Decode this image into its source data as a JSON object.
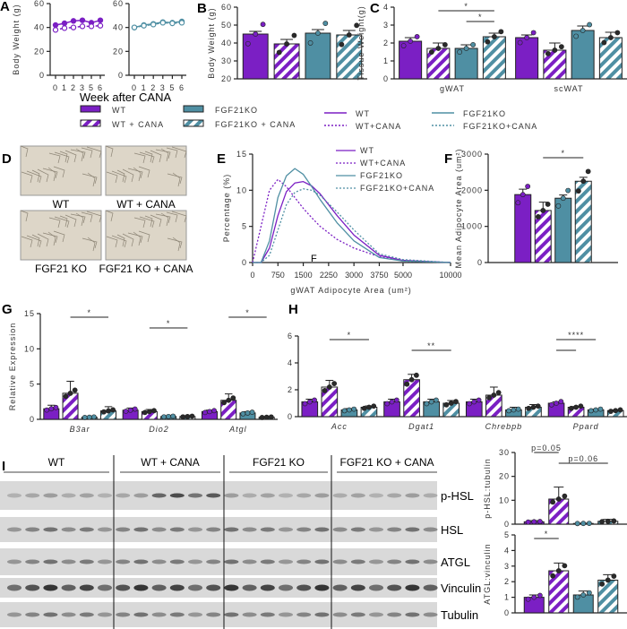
{
  "panel_labels": [
    "A",
    "B",
    "C",
    "D",
    "E",
    "F",
    "G",
    "H",
    "I"
  ],
  "colors": {
    "wt": "#7b1fc4",
    "ko": "#4f8fa3",
    "hatch_bg": "#ffffff"
  },
  "legend_bars": [
    {
      "label": "WT",
      "style": "wt-solid"
    },
    {
      "label": "WT + CANA",
      "style": "wt-hatch"
    },
    {
      "label": "FGF21KO",
      "style": "ko-solid"
    },
    {
      "label": "FGF21KO + CANA",
      "style": "ko-hatch"
    }
  ],
  "legend_lines": [
    {
      "label": "WT",
      "style": "wt-solid"
    },
    {
      "label": "WT+CANA",
      "style": "wt-dash"
    },
    {
      "label": "FGF21KO",
      "style": "ko-solid"
    },
    {
      "label": "FGF21KO+CANA",
      "style": "ko-dash"
    }
  ],
  "images_d": {
    "labels": [
      "WT",
      "WT + CANA",
      "FGF21 KO",
      "FGF21 KO + CANA"
    ]
  },
  "blot_i": {
    "groups": [
      "WT",
      "WT + CANA",
      "FGF21 KO",
      "FGF21 KO + CANA"
    ],
    "rows": [
      "p-HSL",
      "HSL",
      "ATGL",
      "Vinculin",
      "Tubulin"
    ]
  },
  "chart_data": [
    {
      "id": "A",
      "type": "line",
      "ylabel": "Body Weight (g)",
      "xlabel": "Week after CANA",
      "x": [
        0,
        1,
        2,
        3,
        5,
        6
      ],
      "ylim": [
        0,
        60
      ],
      "yticks": [
        0,
        20,
        40,
        60
      ],
      "panels": [
        {
          "series": [
            {
              "group": "WT",
              "values": [
                42,
                43.5,
                45.5,
                46,
                44,
                46
              ]
            },
            {
              "group": "WT + CANA",
              "values": [
                38,
                39.5,
                40,
                41,
                41,
                41.5
              ]
            }
          ]
        },
        {
          "series": [
            {
              "group": "FGF21KO",
              "values": [
                40,
                42,
                43,
                44.5,
                44,
                45
              ]
            },
            {
              "group": "FGF21KO + CANA",
              "values": [
                40,
                41.5,
                42.5,
                44,
                43.5,
                44
              ]
            }
          ]
        }
      ]
    },
    {
      "id": "B",
      "type": "bar",
      "ylabel": "Body Weight (g)",
      "ylim": [
        20,
        60
      ],
      "yticks": [
        20,
        30,
        40,
        50,
        60
      ],
      "groups": [
        {
          "label": "",
          "values": [
            45,
            39.5,
            45.5,
            44.5
          ],
          "errors": [
            1.5,
            2.5,
            2,
            2.5
          ]
        }
      ]
    },
    {
      "id": "C",
      "type": "bar",
      "ylabel": "Tissue Weight(g)",
      "ylim": [
        0,
        4
      ],
      "yticks": [
        0,
        1,
        2,
        3,
        4
      ],
      "groups": [
        {
          "label": "gWAT",
          "values": [
            2.1,
            1.7,
            1.7,
            2.35
          ],
          "errors": [
            0.2,
            0.3,
            0.2,
            0.2
          ]
        },
        {
          "label": "scWAT",
          "values": [
            2.3,
            1.6,
            2.7,
            2.3
          ],
          "errors": [
            0.15,
            0.4,
            0.25,
            0.3
          ]
        }
      ],
      "sig": [
        {
          "group": 0,
          "from": 1,
          "to": 3,
          "label": "*"
        },
        {
          "group": 0,
          "from": 2,
          "to": 3,
          "label": "*"
        }
      ]
    },
    {
      "id": "E",
      "type": "line",
      "ylabel": "Percentage (%)",
      "xlabel": "gWAT Adipocyte Area (um²)",
      "ylim": [
        0,
        15
      ],
      "yticks": [
        0,
        5,
        10,
        15
      ],
      "xticks": [
        0,
        750,
        1500,
        2250,
        3000,
        3750,
        5000,
        10000
      ],
      "annotation": "F",
      "x": [
        0,
        250,
        500,
        750,
        1000,
        1250,
        1500,
        1750,
        2000,
        2500,
        3000,
        3750,
        5000,
        10000
      ],
      "series": [
        {
          "name": "WT",
          "values": [
            0,
            0,
            2,
            6.5,
            9.8,
            11,
            11.2,
            10.6,
            9.5,
            6.5,
            3.8,
            1.0,
            0.3,
            0
          ]
        },
        {
          "name": "WT+CANA",
          "values": [
            0,
            5,
            10,
            11.5,
            10.5,
            9,
            7.5,
            6.2,
            5,
            3.2,
            2,
            0.8,
            0.2,
            0
          ]
        },
        {
          "name": "FGF21KO",
          "values": [
            0,
            0,
            3,
            9,
            12,
            13,
            12.2,
            10.5,
            8.7,
            5.5,
            3,
            0.7,
            0.2,
            0
          ]
        },
        {
          "name": "FGF21KO+CANA",
          "values": [
            0,
            0,
            1,
            4.5,
            8,
            9.7,
            10.2,
            10,
            9.3,
            7,
            4.5,
            1.2,
            0.4,
            0
          ]
        }
      ]
    },
    {
      "id": "F",
      "type": "bar",
      "ylabel": "Mean Adipocyte Area (um²)",
      "ylim": [
        0,
        3000
      ],
      "yticks": [
        0,
        1000,
        2000,
        3000
      ],
      "groups": [
        {
          "label": "",
          "values": [
            1880,
            1440,
            1780,
            2250
          ],
          "errors": [
            150,
            230,
            90,
            110
          ]
        }
      ],
      "sig": [
        {
          "group": 0,
          "from": 1,
          "to": 3,
          "label": "*"
        }
      ]
    },
    {
      "id": "G",
      "type": "bar",
      "ylabel": "Relative Expression",
      "ylim": [
        0,
        15
      ],
      "yticks": [
        0,
        5,
        10,
        15
      ],
      "groups": [
        {
          "label": "B3ar",
          "values": [
            1.5,
            3.7,
            0.3,
            1.2
          ],
          "errors": [
            0.5,
            1.7,
            0.1,
            0.6
          ]
        },
        {
          "label": "Dio2",
          "values": [
            1.3,
            1.1,
            0.4,
            0.4
          ],
          "errors": [
            0.3,
            0.3,
            0.1,
            0.1
          ]
        },
        {
          "label": "Atgl",
          "values": [
            1.1,
            2.7,
            0.9,
            0.3
          ],
          "errors": [
            0.2,
            0.9,
            0.2,
            0.1
          ]
        }
      ],
      "sig": [
        {
          "group": 0,
          "from": 1,
          "to": 3,
          "label": "*"
        },
        {
          "group": 1,
          "from": 1,
          "to": 3,
          "label": "*"
        },
        {
          "group": 2,
          "from": 1,
          "to": 3,
          "label": "*"
        }
      ]
    },
    {
      "id": "H",
      "type": "bar",
      "ylabel": "",
      "ylim": [
        0,
        6
      ],
      "yticks": [
        0,
        2,
        4,
        6
      ],
      "groups": [
        {
          "label": "Acc",
          "values": [
            1.1,
            2.2,
            0.5,
            0.7
          ],
          "errors": [
            0.2,
            0.5,
            0.1,
            0.1
          ]
        },
        {
          "label": "Dgat1",
          "values": [
            1.1,
            2.75,
            1.1,
            1.0
          ],
          "errors": [
            0.2,
            0.4,
            0.2,
            0.2
          ]
        },
        {
          "label": "Chrebpb",
          "values": [
            1.1,
            1.6,
            0.5,
            0.7
          ],
          "errors": [
            0.2,
            0.6,
            0.2,
            0.2
          ]
        },
        {
          "label": "Ppard",
          "values": [
            1.0,
            0.7,
            0.5,
            0.45
          ],
          "errors": [
            0.1,
            0.05,
            0.05,
            0.05
          ]
        }
      ],
      "sig": [
        {
          "group": 0,
          "from": 1,
          "to": 3,
          "label": "*"
        },
        {
          "group": 1,
          "from": 1,
          "to": 3,
          "label": "**"
        },
        {
          "group": 3,
          "from": 0,
          "to": 2,
          "label": "****"
        },
        {
          "group": 3,
          "from": 0,
          "to": 1,
          "label": ""
        }
      ]
    },
    {
      "id": "I1",
      "type": "bar",
      "ylabel": "p-HSL:tubulin",
      "ylim": [
        0,
        30
      ],
      "yticks": [
        0,
        10,
        20,
        30
      ],
      "groups": [
        {
          "label": "",
          "values": [
            1,
            10.5,
            0.3,
            1.2
          ],
          "errors": [
            0.5,
            5,
            0.1,
            0.8
          ]
        }
      ],
      "sig": [
        {
          "group": 0,
          "from": 0,
          "to": 1,
          "label": "p=0.05"
        },
        {
          "group": 0,
          "from": 1,
          "to": 3,
          "label": "p=0.06"
        }
      ]
    },
    {
      "id": "I2",
      "type": "bar",
      "ylabel": "ATGL:vinculin",
      "ylim": [
        0,
        5
      ],
      "yticks": [
        0,
        1,
        2,
        3,
        4,
        5
      ],
      "groups": [
        {
          "label": "",
          "values": [
            1,
            2.7,
            1.15,
            2.1
          ],
          "errors": [
            0.15,
            0.5,
            0.25,
            0.35
          ]
        }
      ],
      "sig": [
        {
          "group": 0,
          "from": 0,
          "to": 1,
          "label": "*"
        }
      ]
    }
  ]
}
